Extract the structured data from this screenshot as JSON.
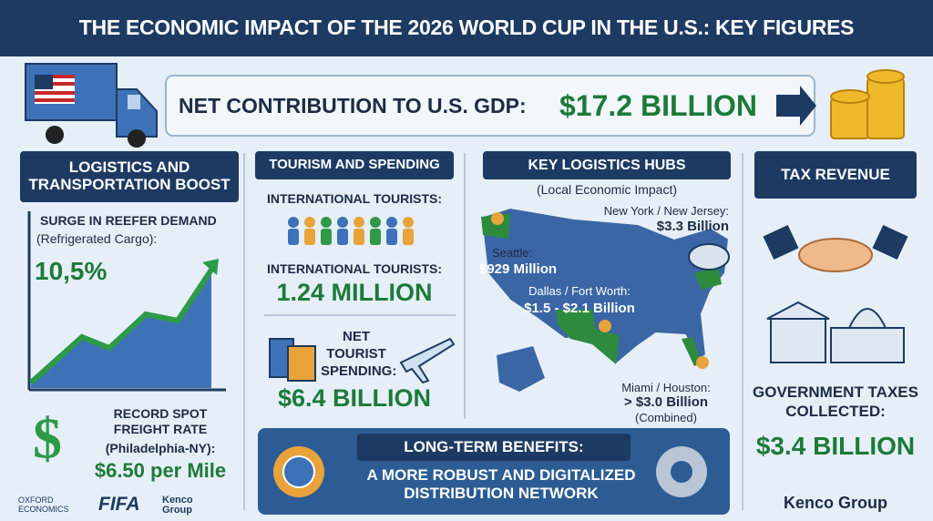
{
  "header": {
    "title": "THE ECONOMIC IMPACT OF THE 2026 WORLD CUP IN THE U.S.: KEY FIGURES"
  },
  "banner": {
    "label": "NET CONTRIBUTION TO U.S. GDP:",
    "value": "$17.2 BILLION"
  },
  "logistics": {
    "title": "LOGISTICS AND TRANSPORTATION BOOST",
    "reefer_label": "SURGE IN REEFER DEMAND",
    "reefer_note": "(Refrigerated Cargo):",
    "reefer_value": "10,5%",
    "freight_label": "RECORD SPOT FREIGHT RATE",
    "freight_note": "(Philadelphia-NY):",
    "freight_value": "$6.50 per Mile"
  },
  "tourism": {
    "title": "TOURISM AND SPENDING",
    "tourists_label_1": "INTERNATIONAL TOURISTS:",
    "tourists_label_2": "INTERNATIONAL TOURISTS:",
    "tourists_value": "1.24 MILLION",
    "spending_label": "NET TOURIST SPENDING:",
    "spending_value": "$6.4 BILLION"
  },
  "hubs": {
    "title": "KEY LOGISTICS HUBS",
    "subtitle": "(Local Economic Impact)",
    "items": [
      {
        "name": "New York / New Jersey:",
        "value": "$3.3 Billion"
      },
      {
        "name": "Seattle:",
        "value": "$929 Million"
      },
      {
        "name": "Dallas / Fort Worth:",
        "value": "$1.5 - $2.1 Billion"
      },
      {
        "name": "Miami / Houston:",
        "value": "> $3.0 Billion",
        "note": "(Combined)"
      }
    ]
  },
  "tax": {
    "title": "TAX REVENUE",
    "label": "GOVERNMENT TAXES COLLECTED:",
    "value": "$3.4 BILLION"
  },
  "benefits": {
    "title": "LONG-TERM BENEFITS:",
    "text": "A MORE ROBUST AND DIGITALIZED DISTRIBUTION NETWORK"
  },
  "footer": {
    "logos": [
      "OXFORD ECONOMICS",
      "FIFA",
      "Kenco Group"
    ],
    "brand": "Kenco Group"
  }
}
